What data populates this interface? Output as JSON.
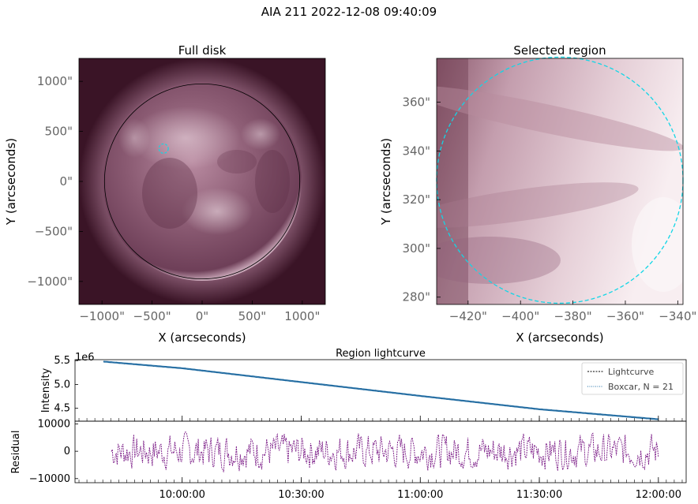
{
  "figure": {
    "title": "AIA 211 2022-12-08 09:40:09"
  },
  "colors": {
    "disk_dark": "#3a1426",
    "disk_mid": "#7a4a62",
    "disk_light": "#e8d2dc",
    "region_dark": "#6a3a4e",
    "region_light": "#f6ecef",
    "limb": "#000000",
    "circle": "#12d6e6",
    "lightcurve": "#000000",
    "boxcar": "#1f6fa8",
    "residual": "#7a1a86"
  },
  "chart_data": [
    {
      "type": "image",
      "title": "Full disk",
      "xlabel": "X (arcseconds)",
      "ylabel": "Y (arcseconds)",
      "xlim": [
        -1230,
        1230
      ],
      "ylim": [
        -1230,
        1230
      ],
      "xticks": [
        -1000,
        -500,
        0,
        500,
        1000
      ],
      "xtick_labels": [
        "−1000\"",
        "−500\"",
        "0\"",
        "500\"",
        "1000\""
      ],
      "yticks": [
        1000,
        500,
        0,
        -500,
        -1000
      ],
      "ytick_labels": [
        "1000\"",
        "500\"",
        "0\"",
        "−500\"",
        "−1000\""
      ],
      "solar_radius": 975,
      "selection_circle": {
        "x": -385,
        "y": 328,
        "r": 47
      }
    },
    {
      "type": "image",
      "title": "Selected region",
      "xlabel": "X (arcseconds)",
      "ylabel": "Y (arcseconds)",
      "xlim": [
        -432,
        -338
      ],
      "ylim": [
        277,
        378
      ],
      "xticks": [
        -420,
        -400,
        -380,
        -360,
        -340
      ],
      "xtick_labels": [
        "−420\"",
        "−400\"",
        "−380\"",
        "−360\"",
        "−340\""
      ],
      "yticks": [
        360,
        340,
        320,
        300,
        280
      ],
      "ytick_labels": [
        "360\"",
        "340\"",
        "320\"",
        "300\"",
        "280\""
      ],
      "selection_circle": {
        "x": -385,
        "y": 328,
        "r": 47
      }
    },
    {
      "type": "line",
      "title": "Region lightcurve",
      "ylabel": "Intensity",
      "offset_label": "1e6",
      "y_scale": 1000000,
      "ylim": [
        4.23,
        5.52
      ],
      "yticks": [
        5.5,
        5.0,
        4.5
      ],
      "ytick_labels": [
        "5.5",
        "5.0",
        "4.5"
      ],
      "legend": [
        "Lightcurve",
        "Boxcar, N = 21"
      ],
      "legend_position": "upper right",
      "x_range": [
        "09:40:09",
        "12:00:00"
      ],
      "series": [
        {
          "name": "Lightcurve",
          "x": [
            "09:40:09",
            "10:00:00",
            "10:30:00",
            "11:00:00",
            "11:30:00",
            "12:00:00"
          ],
          "y": [
            5.48,
            5.34,
            5.05,
            4.76,
            4.48,
            4.27
          ]
        },
        {
          "name": "Boxcar, N = 21",
          "x": [
            "09:40:09",
            "10:00:00",
            "10:30:00",
            "11:00:00",
            "11:30:00",
            "12:00:00"
          ],
          "y": [
            5.48,
            5.34,
            5.05,
            4.76,
            4.48,
            4.27
          ]
        }
      ]
    },
    {
      "type": "line",
      "title": "",
      "ylabel": "Residual",
      "xlim": [
        "09:33:00",
        "12:07:00"
      ],
      "ylim": [
        -11500,
        11000
      ],
      "yticks": [
        10000,
        0,
        -10000
      ],
      "ytick_labels": [
        "10000",
        "0",
        "−10000"
      ],
      "xticks": [
        "10:00:00",
        "10:30:00",
        "11:00:00",
        "11:30:00",
        "12:00:00"
      ],
      "amplitude": 10000
    }
  ]
}
